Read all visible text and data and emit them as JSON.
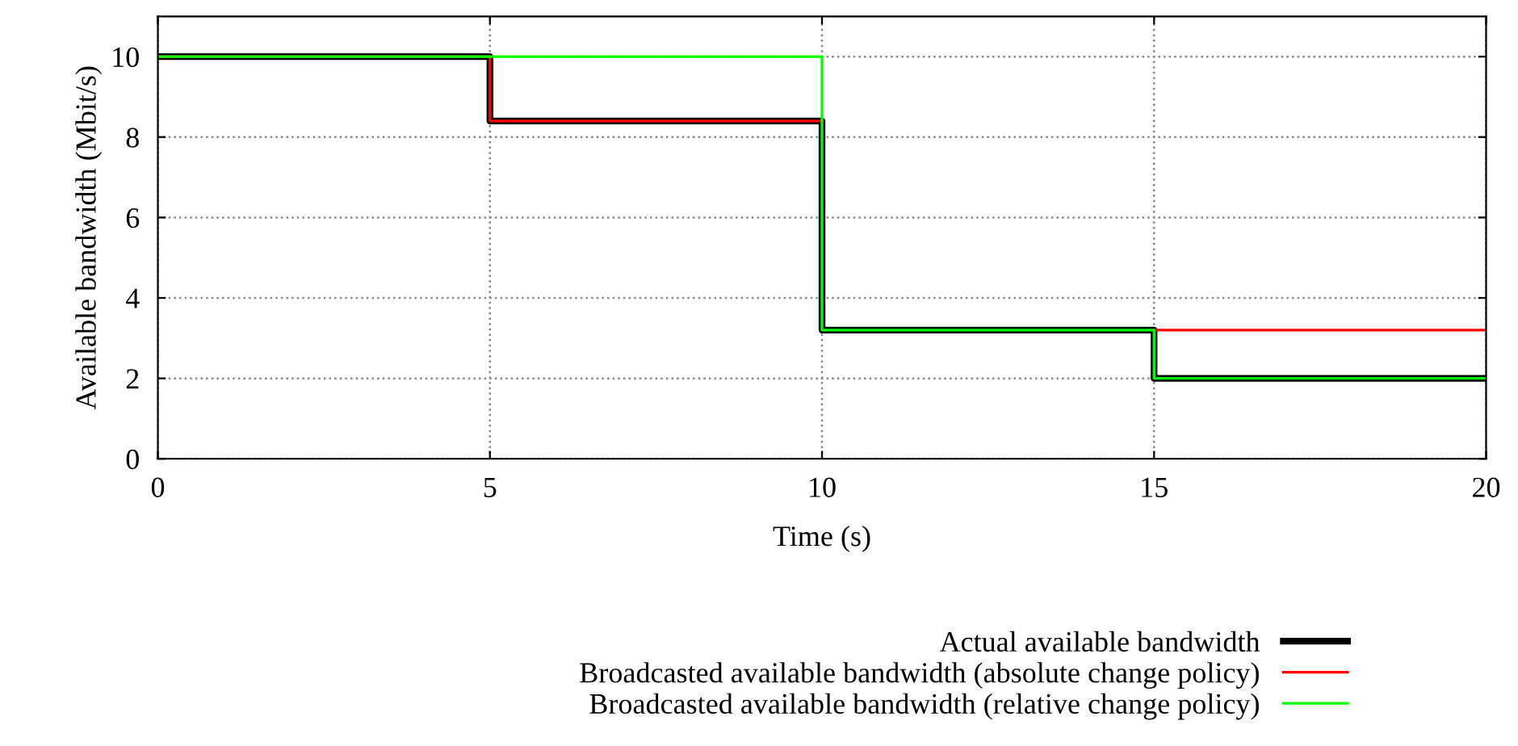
{
  "chart_data": {
    "type": "step",
    "xlabel": "Time (s)",
    "ylabel": "Available bandwidth (Mbit/s)",
    "x": [
      0,
      5,
      10,
      15,
      20
    ],
    "series": [
      {
        "name": "Actual available bandwidth",
        "color": "#000000",
        "values": [
          10,
          8.4,
          3.2,
          2,
          2
        ]
      },
      {
        "name": "Broadcasted available bandwidth (absolute change policy)",
        "color": "#ff0000",
        "values": [
          10,
          8.4,
          null,
          3.2,
          3.2
        ]
      },
      {
        "name": "Broadcasted available bandwidth (relative change policy)",
        "color": "#00ff00",
        "values": [
          10,
          10,
          3.2,
          2,
          2
        ]
      }
    ],
    "xlim": [
      0,
      20
    ],
    "xticks": [
      0,
      5,
      10,
      15,
      20
    ],
    "ylim": [
      0,
      11
    ],
    "yticks": [
      0,
      2,
      4,
      6,
      8,
      10
    ],
    "grid": true,
    "line_style": "solid",
    "legend": "bottom right"
  }
}
